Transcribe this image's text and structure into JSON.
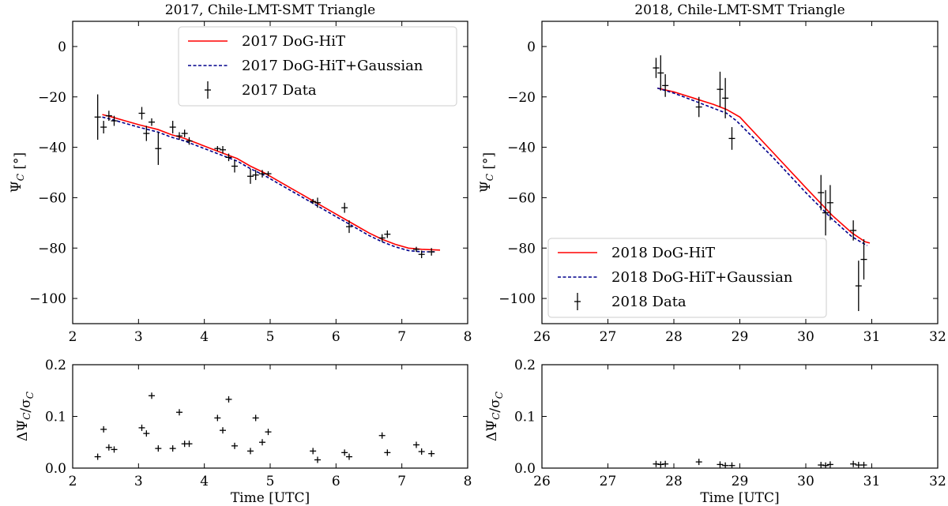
{
  "chart_data": [
    {
      "type": "line",
      "title": "2017, Chile-LMT-SMT Triangle",
      "xlabel": "",
      "ylabel": "Ψ_C [°]",
      "xlim": [
        2,
        8
      ],
      "ylim": [
        -110,
        10
      ],
      "xticks": [
        "2",
        "3",
        "4",
        "5",
        "6",
        "7",
        "8"
      ],
      "yticks": [
        "0",
        "−20",
        "−40",
        "−60",
        "−80",
        "−100"
      ],
      "legend": {
        "location": "top-right",
        "entries": [
          "2017 DoG-HiT",
          "2017 DoG-HiT+Gaussian",
          "2017 Data"
        ]
      },
      "series": [
        {
          "name": "2017 DoG-HiT",
          "style": "solid",
          "color": "#ff0000",
          "x": [
            2.45,
            2.6,
            2.8,
            3.0,
            3.3,
            3.5,
            3.7,
            3.9,
            4.1,
            4.3,
            4.5,
            4.7,
            4.9,
            5.1,
            5.3,
            5.5,
            5.7,
            5.9,
            6.1,
            6.3,
            6.5,
            6.7,
            6.9,
            7.1,
            7.3,
            7.58
          ],
          "y": [
            -27,
            -28,
            -29.5,
            -31,
            -33,
            -35,
            -36.5,
            -38.5,
            -40.5,
            -42.5,
            -44.5,
            -47.5,
            -50,
            -53,
            -56,
            -59,
            -62,
            -65,
            -68,
            -71,
            -74,
            -76.5,
            -78.5,
            -80,
            -80.5,
            -80.8
          ]
        },
        {
          "name": "2017 DoG-HiT+Gaussian",
          "style": "dashed",
          "color": "#00008b",
          "x": [
            2.45,
            2.6,
            2.8,
            3.0,
            3.3,
            3.5,
            3.7,
            3.9,
            4.1,
            4.3,
            4.5,
            4.7,
            4.9,
            5.1,
            5.3,
            5.5,
            5.7,
            5.9,
            6.1,
            6.3,
            6.5,
            6.7,
            6.9,
            7.1,
            7.3,
            7.5
          ],
          "y": [
            -28,
            -29,
            -30.5,
            -32,
            -34,
            -36,
            -37.5,
            -39.5,
            -41.5,
            -43.5,
            -45.5,
            -48.5,
            -51,
            -54,
            -57,
            -60,
            -63,
            -66,
            -69,
            -72,
            -75,
            -77.5,
            -79.5,
            -81,
            -81.5,
            -81.5
          ]
        },
        {
          "name": "2017 Data",
          "style": "errorbar",
          "color": "#000000",
          "x": [
            2.38,
            2.47,
            2.55,
            2.63,
            3.05,
            3.12,
            3.2,
            3.3,
            3.52,
            3.62,
            3.7,
            3.77,
            4.2,
            4.28,
            4.37,
            4.46,
            4.7,
            4.78,
            4.88,
            4.97,
            5.65,
            5.72,
            6.13,
            6.2,
            6.7,
            6.78,
            7.22,
            7.3,
            7.45
          ],
          "y": [
            -28,
            -32,
            -27.5,
            -29.5,
            -26.5,
            -34.5,
            -30,
            -40.5,
            -32,
            -35.5,
            -34.5,
            -37.5,
            -40.5,
            -41,
            -44,
            -47.5,
            -51.5,
            -51,
            -50.5,
            -50.5,
            -61.5,
            -62,
            -64,
            -71.5,
            -76,
            -74.5,
            -80.5,
            -82.5,
            -81.5
          ],
          "yerr": [
            9,
            2.5,
            2,
            2,
            2.5,
            3,
            1.5,
            6.5,
            2.5,
            1.5,
            1.5,
            1.5,
            1,
            1.5,
            1.5,
            2.5,
            3,
            2,
            1.5,
            1,
            1,
            2,
            2,
            2.5,
            1.5,
            1.5,
            1,
            1.5,
            1.5
          ]
        }
      ]
    },
    {
      "type": "scatter",
      "title": "",
      "xlabel": "Time [UTC]",
      "ylabel": "ΔΨ_C/σ_C",
      "xlim": [
        2,
        8
      ],
      "ylim": [
        0,
        0.2
      ],
      "xticks": [
        "2",
        "3",
        "4",
        "5",
        "6",
        "7",
        "8"
      ],
      "yticks": [
        "0.0",
        "0.1",
        "0.2"
      ],
      "series": [
        {
          "name": "",
          "x": [
            2.38,
            2.47,
            2.55,
            2.63,
            3.05,
            3.12,
            3.2,
            3.3,
            3.52,
            3.62,
            3.7,
            3.77,
            4.2,
            4.28,
            4.37,
            4.46,
            4.7,
            4.78,
            4.88,
            4.97,
            5.65,
            5.72,
            6.13,
            6.2,
            6.7,
            6.78,
            7.22,
            7.3,
            7.45
          ],
          "y": [
            0.022,
            0.075,
            0.04,
            0.036,
            0.078,
            0.067,
            0.14,
            0.038,
            0.038,
            0.108,
            0.047,
            0.047,
            0.097,
            0.073,
            0.133,
            0.043,
            0.033,
            0.097,
            0.05,
            0.07,
            0.033,
            0.016,
            0.03,
            0.022,
            0.063,
            0.03,
            0.045,
            0.032,
            0.028
          ]
        }
      ]
    },
    {
      "type": "line",
      "title": "2018, Chile-LMT-SMT Triangle",
      "xlabel": "",
      "ylabel": "Ψ_C [°]",
      "xlim": [
        26,
        32
      ],
      "ylim": [
        -110,
        10
      ],
      "xticks": [
        "26",
        "27",
        "28",
        "29",
        "30",
        "31",
        "32"
      ],
      "yticks": [
        "0",
        "−20",
        "−40",
        "−60",
        "−80",
        "−100"
      ],
      "legend": {
        "location": "bottom-left",
        "entries": [
          "2018 DoG-HiT",
          "2018 DoG-HiT+Gaussian",
          "2018 Data"
        ]
      },
      "series": [
        {
          "name": "2018 DoG-HiT",
          "style": "solid",
          "color": "#ff0000",
          "x": [
            27.75,
            28.0,
            28.3,
            28.6,
            28.8,
            29.0,
            29.5,
            30.0,
            30.4,
            30.7,
            30.9,
            30.97
          ],
          "y": [
            -16.5,
            -18,
            -20.5,
            -23,
            -25,
            -28,
            -42,
            -56,
            -67,
            -74,
            -77.5,
            -78
          ]
        },
        {
          "name": "2018 DoG-HiT+Gaussian",
          "style": "dashed",
          "color": "#00008b",
          "x": [
            27.75,
            28.0,
            28.3,
            28.6,
            28.8,
            28.95,
            29.5,
            30.0,
            30.4,
            30.7,
            30.93
          ],
          "y": [
            -16.5,
            -18.5,
            -21.5,
            -24.5,
            -26.5,
            -29.5,
            -44,
            -58,
            -68.5,
            -75.5,
            -79
          ]
        },
        {
          "name": "2018 Data",
          "style": "errorbar",
          "color": "#000000",
          "x": [
            27.73,
            27.8,
            27.87,
            28.38,
            28.7,
            28.78,
            28.88,
            30.23,
            30.3,
            30.37,
            30.72,
            30.8,
            30.88
          ],
          "y": [
            -8.5,
            -10.5,
            -15.5,
            -24,
            -17,
            -20.5,
            -36.5,
            -58,
            -66,
            -62,
            -73,
            -95,
            -84.5
          ],
          "yerr": [
            4,
            7,
            4.5,
            4,
            7,
            8,
            4.5,
            7,
            9,
            7,
            4,
            10,
            8
          ]
        }
      ]
    },
    {
      "type": "scatter",
      "title": "",
      "xlabel": "Time [UTC]",
      "ylabel": "ΔΨ_C/σ_C",
      "xlim": [
        26,
        32
      ],
      "ylim": [
        0,
        0.2
      ],
      "xticks": [
        "26",
        "27",
        "28",
        "29",
        "30",
        "31",
        "32"
      ],
      "yticks": [
        "0.0",
        "0.1",
        "0.2"
      ],
      "series": [
        {
          "name": "",
          "x": [
            27.73,
            27.8,
            27.87,
            28.38,
            28.7,
            28.78,
            28.88,
            30.23,
            30.3,
            30.37,
            30.72,
            30.8,
            30.88
          ],
          "y": [
            0.008,
            0.007,
            0.008,
            0.012,
            0.007,
            0.005,
            0.005,
            0.006,
            0.005,
            0.007,
            0.008,
            0.006,
            0.006
          ]
        }
      ]
    }
  ]
}
